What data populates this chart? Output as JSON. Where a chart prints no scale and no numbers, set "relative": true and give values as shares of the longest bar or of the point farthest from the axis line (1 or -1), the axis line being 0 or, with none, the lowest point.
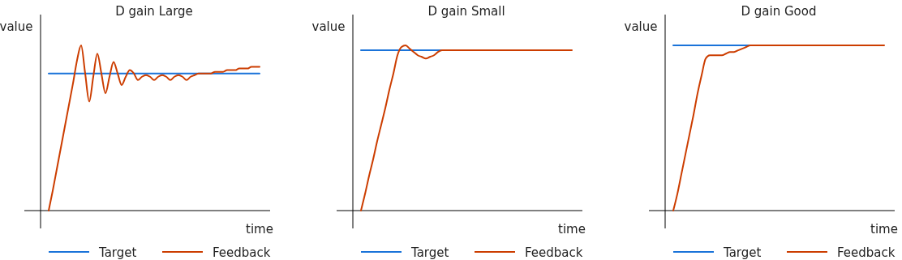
{
  "chart_data": [
    {
      "type": "line",
      "title": "D gain Large",
      "xlabel": "time",
      "ylabel": "value",
      "relative": true,
      "legend": "bottom",
      "categories": [
        null,
        null,
        null,
        null,
        null,
        null,
        null,
        null,
        null,
        null,
        null,
        null,
        null,
        null,
        null,
        null,
        null,
        null,
        null,
        null,
        null,
        null,
        null,
        null,
        null,
        null,
        null,
        null,
        null,
        null,
        null,
        null,
        null,
        null,
        null,
        null,
        null,
        null,
        null,
        null,
        null,
        null,
        null,
        null,
        null,
        null,
        null,
        null,
        null,
        null,
        null,
        null,
        null
      ],
      "series": [
        {
          "name": "Target",
          "color": "#1a73d9",
          "values": [
            0.83,
            0.83,
            0.83,
            0.83,
            0.83,
            0.83,
            0.83,
            0.83,
            0.83,
            0.83,
            0.83,
            0.83,
            0.83,
            0.83,
            0.83,
            0.83,
            0.83,
            0.83,
            0.83,
            0.83,
            0.83,
            0.83,
            0.83,
            0.83,
            0.83,
            0.83,
            0.83,
            0.83,
            0.83,
            0.83,
            0.83,
            0.83,
            0.83,
            0.83,
            0.83,
            0.83,
            0.83,
            0.83,
            0.83,
            0.83,
            0.83,
            0.83,
            0.83,
            0.83,
            0.83,
            0.83,
            0.83,
            0.83,
            0.83,
            0.83,
            0.83,
            0.83,
            0.83
          ]
        },
        {
          "name": "Feedback",
          "color": "#cc3d00",
          "values": [
            0,
            0.12,
            0.25,
            0.38,
            0.51,
            0.64,
            0.77,
            0.91,
            1,
            0.83,
            0.66,
            0.81,
            0.95,
            0.83,
            0.71,
            0.81,
            0.9,
            0.83,
            0.76,
            0.81,
            0.85,
            0.83,
            0.79,
            0.81,
            0.82,
            0.81,
            0.79,
            0.81,
            0.82,
            0.81,
            0.79,
            0.81,
            0.82,
            0.81,
            0.79,
            0.81,
            0.82,
            0.83,
            0.83,
            0.83,
            0.83,
            0.84,
            0.84,
            0.84,
            0.85,
            0.85,
            0.85,
            0.86,
            0.86,
            0.86,
            0.87,
            0.87,
            0.87
          ]
        }
      ]
    },
    {
      "type": "line",
      "title": "D gain Small",
      "xlabel": "time",
      "ylabel": "value",
      "relative": true,
      "legend": "bottom",
      "categories": [
        null,
        null,
        null,
        null,
        null,
        null,
        null,
        null,
        null,
        null,
        null,
        null,
        null,
        null,
        null,
        null,
        null,
        null,
        null,
        null,
        null,
        null,
        null,
        null,
        null,
        null,
        null,
        null,
        null,
        null,
        null,
        null,
        null,
        null,
        null,
        null,
        null,
        null,
        null,
        null,
        null,
        null,
        null,
        null,
        null,
        null,
        null,
        null,
        null,
        null,
        null,
        null,
        null
      ],
      "series": [
        {
          "name": "Target",
          "color": "#1a73d9",
          "values": [
            0.97,
            0.97,
            0.97,
            0.97,
            0.97,
            0.97,
            0.97,
            0.97,
            0.97,
            0.97,
            0.97,
            0.97,
            0.97,
            0.97,
            0.97,
            0.97,
            0.97,
            0.97,
            0.97,
            0.97,
            0.97,
            null,
            null,
            null,
            null,
            null,
            null,
            null,
            null,
            null,
            null,
            null,
            null,
            null,
            null,
            null,
            null,
            null,
            null,
            null,
            null,
            null,
            null,
            null,
            null,
            null,
            null,
            null,
            null,
            null,
            null,
            null,
            null
          ]
        },
        {
          "name": "Feedback",
          "color": "#cc3d00",
          "values": [
            0,
            0.1,
            0.21,
            0.31,
            0.42,
            0.52,
            0.62,
            0.73,
            0.83,
            0.94,
            0.99,
            1,
            0.98,
            0.96,
            0.94,
            0.93,
            0.92,
            0.93,
            0.94,
            0.96,
            0.97,
            0.97,
            0.97,
            0.97,
            0.97,
            0.97,
            0.97,
            0.97,
            0.97,
            0.97,
            0.97,
            0.97,
            0.97,
            0.97,
            0.97,
            0.97,
            0.97,
            0.97,
            0.97,
            0.97,
            0.97,
            0.97,
            0.97,
            0.97,
            0.97,
            0.97,
            0.97,
            0.97,
            0.97,
            0.97,
            0.97,
            0.97,
            0.97
          ]
        }
      ]
    },
    {
      "type": "line",
      "title": "D gain Good",
      "xlabel": "time",
      "ylabel": "value",
      "relative": true,
      "legend": "bottom",
      "categories": [
        null,
        null,
        null,
        null,
        null,
        null,
        null,
        null,
        null,
        null,
        null,
        null,
        null,
        null,
        null,
        null,
        null,
        null,
        null,
        null,
        null,
        null,
        null,
        null,
        null,
        null,
        null,
        null,
        null,
        null,
        null,
        null,
        null,
        null,
        null,
        null,
        null,
        null,
        null,
        null,
        null,
        null,
        null,
        null,
        null,
        null,
        null,
        null,
        null,
        null,
        null,
        null,
        null
      ],
      "series": [
        {
          "name": "Target",
          "color": "#1a73d9",
          "values": [
            1,
            1,
            1,
            1,
            1,
            1,
            1,
            1,
            1,
            1,
            1,
            1,
            1,
            1,
            1,
            1,
            1,
            1,
            1,
            1,
            null,
            null,
            null,
            null,
            null,
            null,
            null,
            null,
            null,
            null,
            null,
            null,
            null,
            null,
            null,
            null,
            null,
            null,
            null,
            null,
            null,
            null,
            null,
            null,
            null,
            null,
            null,
            null,
            null,
            null,
            null,
            null,
            null
          ]
        },
        {
          "name": "Feedback",
          "color": "#cc3d00",
          "values": [
            0,
            0.1,
            0.22,
            0.34,
            0.46,
            0.58,
            0.71,
            0.82,
            0.92,
            0.94,
            0.94,
            0.94,
            0.94,
            0.95,
            0.96,
            0.96,
            0.97,
            0.98,
            0.99,
            1,
            1,
            1,
            1,
            1,
            1,
            1,
            1,
            1,
            1,
            1,
            1,
            1,
            1,
            1,
            1,
            1,
            1,
            1,
            1,
            1,
            1,
            1,
            1,
            1,
            1,
            1,
            1,
            1,
            1,
            1,
            1,
            1,
            1
          ]
        }
      ]
    }
  ]
}
